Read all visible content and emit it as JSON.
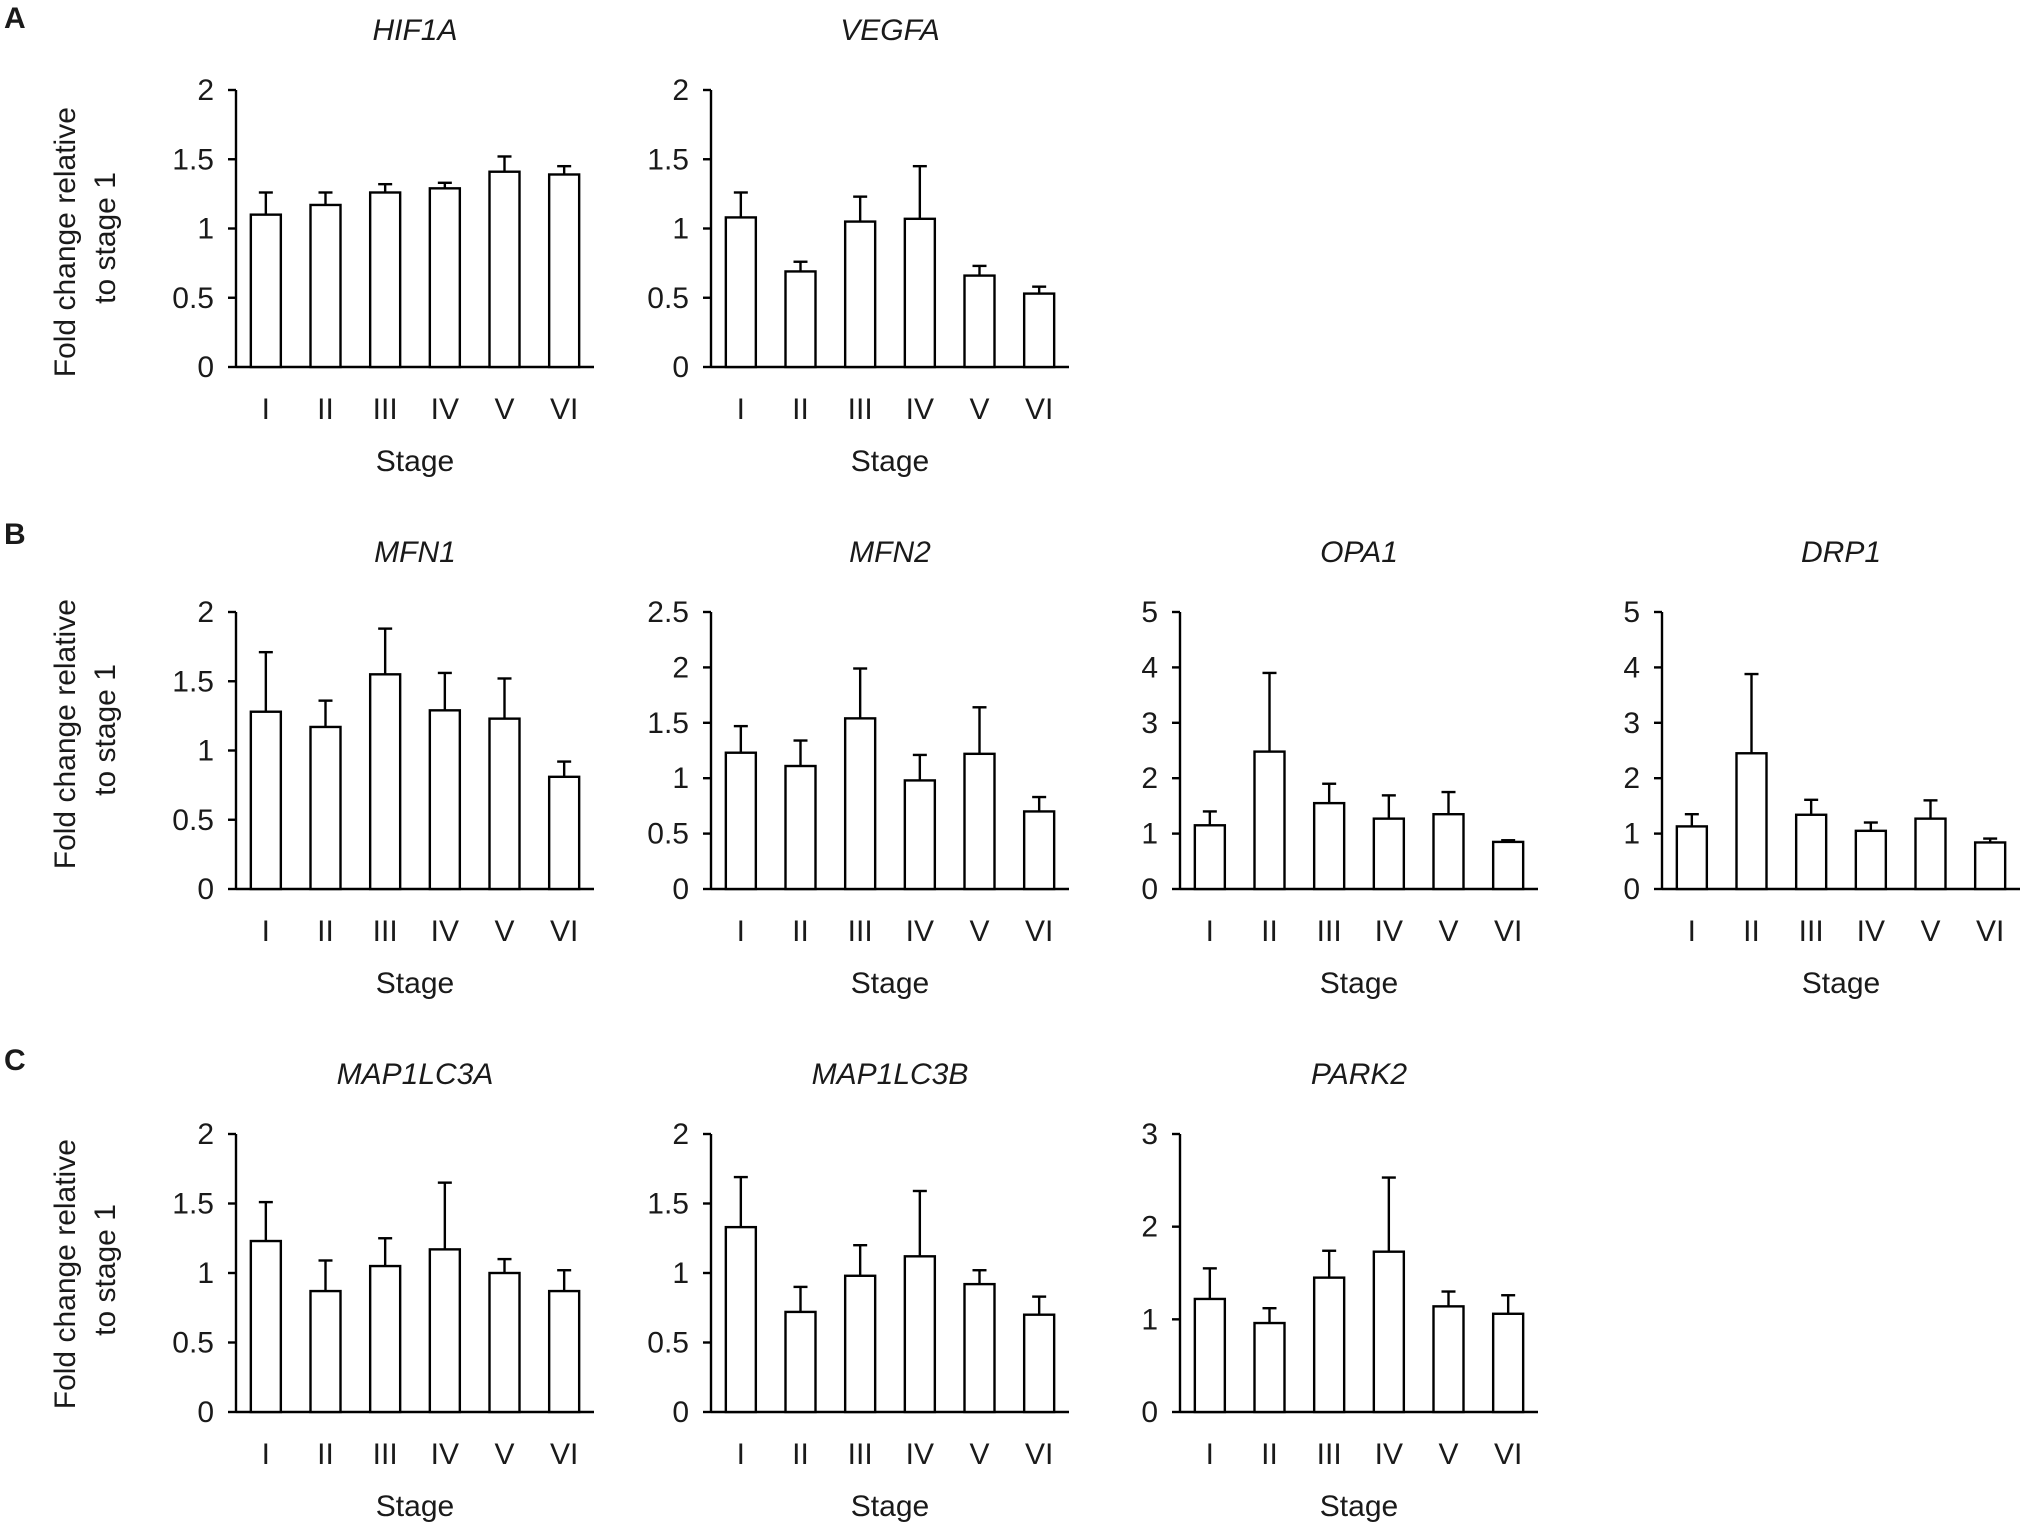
{
  "panels": [
    {
      "letter": "A",
      "ylabel": [
        "Fold change relative",
        "to stage 1"
      ]
    },
    {
      "letter": "B",
      "ylabel": [
        "Fold change relative",
        "to stage 1"
      ]
    },
    {
      "letter": "C",
      "ylabel": [
        "Fold change relative",
        "to stage 1"
      ]
    }
  ],
  "chart_data": [
    {
      "id": "hif1a",
      "panel": "A",
      "type": "bar",
      "title": "HIF1A",
      "xlabel": "Stage",
      "ylabel": "Fold change relative to stage 1",
      "categories": [
        "I",
        "II",
        "III",
        "IV",
        "V",
        "VI"
      ],
      "ylim": [
        0,
        2
      ],
      "yticks": [
        0,
        0.5,
        1,
        1.5,
        2
      ],
      "values": [
        1.1,
        1.17,
        1.26,
        1.29,
        1.41,
        1.39
      ],
      "errors": [
        0.16,
        0.09,
        0.06,
        0.04,
        0.11,
        0.06
      ]
    },
    {
      "id": "vegfa",
      "panel": "A",
      "type": "bar",
      "title": "VEGFA",
      "xlabel": "Stage",
      "ylabel": "Fold change relative to stage 1",
      "categories": [
        "I",
        "II",
        "III",
        "IV",
        "V",
        "VI"
      ],
      "ylim": [
        0,
        2
      ],
      "yticks": [
        0,
        0.5,
        1,
        1.5,
        2
      ],
      "values": [
        1.08,
        0.69,
        1.05,
        1.07,
        0.66,
        0.53
      ],
      "errors": [
        0.18,
        0.07,
        0.18,
        0.38,
        0.07,
        0.05
      ]
    },
    {
      "id": "mfn1",
      "panel": "B",
      "type": "bar",
      "title": "MFN1",
      "xlabel": "Stage",
      "ylabel": "Fold change relative to stage 1",
      "categories": [
        "I",
        "II",
        "III",
        "IV",
        "V",
        "VI"
      ],
      "ylim": [
        0,
        2
      ],
      "yticks": [
        0,
        0.5,
        1,
        1.5,
        2
      ],
      "values": [
        1.28,
        1.17,
        1.55,
        1.29,
        1.23,
        0.81
      ],
      "errors": [
        0.43,
        0.19,
        0.33,
        0.27,
        0.29,
        0.11
      ]
    },
    {
      "id": "mfn2",
      "panel": "B",
      "type": "bar",
      "title": "MFN2",
      "xlabel": "Stage",
      "ylabel": "Fold change relative to stage 1",
      "categories": [
        "I",
        "II",
        "III",
        "IV",
        "V",
        "VI"
      ],
      "ylim": [
        0,
        2.5
      ],
      "yticks": [
        0,
        0.5,
        1,
        1.5,
        2,
        2.5
      ],
      "values": [
        1.23,
        1.11,
        1.54,
        0.98,
        1.22,
        0.7
      ],
      "errors": [
        0.24,
        0.23,
        0.45,
        0.23,
        0.42,
        0.13
      ]
    },
    {
      "id": "opa1",
      "panel": "B",
      "type": "bar",
      "title": "OPA1",
      "xlabel": "Stage",
      "ylabel": "Fold change relative to stage 1",
      "categories": [
        "I",
        "II",
        "III",
        "IV",
        "V",
        "VI"
      ],
      "ylim": [
        0,
        5
      ],
      "yticks": [
        0,
        1,
        2,
        3,
        4,
        5
      ],
      "values": [
        1.15,
        2.48,
        1.55,
        1.27,
        1.35,
        0.85
      ],
      "errors": [
        0.25,
        1.42,
        0.35,
        0.42,
        0.4,
        0.03
      ]
    },
    {
      "id": "drp1",
      "panel": "B",
      "type": "bar",
      "title": "DRP1",
      "xlabel": "Stage",
      "ylabel": "Fold change relative to stage 1",
      "categories": [
        "I",
        "II",
        "III",
        "IV",
        "V",
        "VI"
      ],
      "ylim": [
        0,
        5
      ],
      "yticks": [
        0,
        1,
        2,
        3,
        4,
        5
      ],
      "values": [
        1.13,
        2.45,
        1.34,
        1.05,
        1.27,
        0.84
      ],
      "errors": [
        0.22,
        1.43,
        0.27,
        0.15,
        0.33,
        0.07
      ]
    },
    {
      "id": "map1lc3a",
      "panel": "C",
      "type": "bar",
      "title": "MAP1LC3A",
      "xlabel": "Stage",
      "ylabel": "Fold change relative to stage 1",
      "categories": [
        "I",
        "II",
        "III",
        "IV",
        "V",
        "VI"
      ],
      "ylim": [
        0,
        2
      ],
      "yticks": [
        0,
        0.5,
        1,
        1.5,
        2
      ],
      "values": [
        1.23,
        0.87,
        1.05,
        1.17,
        1.0,
        0.87
      ],
      "errors": [
        0.28,
        0.22,
        0.2,
        0.48,
        0.1,
        0.15
      ]
    },
    {
      "id": "map1lc3b",
      "panel": "C",
      "type": "bar",
      "title": "MAP1LC3B",
      "xlabel": "Stage",
      "ylabel": "Fold change relative to stage 1",
      "categories": [
        "I",
        "II",
        "III",
        "IV",
        "V",
        "VI"
      ],
      "ylim": [
        0,
        2
      ],
      "yticks": [
        0,
        0.5,
        1,
        1.5,
        2
      ],
      "values": [
        1.33,
        0.72,
        0.98,
        1.12,
        0.92,
        0.7
      ],
      "errors": [
        0.36,
        0.18,
        0.22,
        0.47,
        0.1,
        0.13
      ]
    },
    {
      "id": "park2",
      "panel": "C",
      "type": "bar",
      "title": "PARK2",
      "xlabel": "Stage",
      "ylabel": "Fold change relative to stage 1",
      "categories": [
        "I",
        "II",
        "III",
        "IV",
        "V",
        "VI"
      ],
      "ylim": [
        0,
        3
      ],
      "yticks": [
        0,
        1,
        2,
        3
      ],
      "values": [
        1.22,
        0.96,
        1.45,
        1.73,
        1.14,
        1.06
      ],
      "errors": [
        0.33,
        0.16,
        0.29,
        0.8,
        0.16,
        0.2
      ]
    }
  ]
}
